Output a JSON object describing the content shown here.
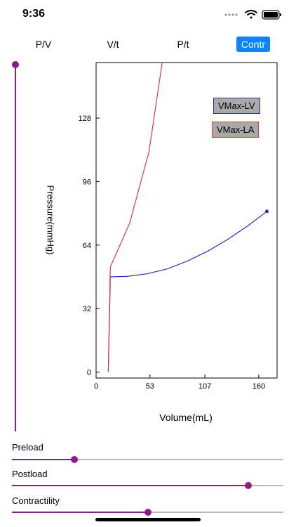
{
  "status_bar": {
    "time": "9:36"
  },
  "tabs": [
    {
      "label": "P/V",
      "active": false
    },
    {
      "label": "V/t",
      "active": false
    },
    {
      "label": "P/t",
      "active": false
    },
    {
      "label": "Contr",
      "active": true
    }
  ],
  "colors": {
    "accent": "#0a84ff",
    "slider": "#8b1a8b",
    "lv_line": "#2e2eb8",
    "la_line": "#d63b3b"
  },
  "legend": [
    {
      "label": "VMax-LV"
    },
    {
      "label": "VMax-LA"
    }
  ],
  "chart_data": {
    "type": "line",
    "xlabel": "Volume(mL)",
    "ylabel": "Pressure(mmHg)",
    "xlim": [
      0,
      178
    ],
    "ylim": [
      -3,
      156
    ],
    "x_ticks": [
      0,
      53,
      107,
      160
    ],
    "y_ticks": [
      0,
      32,
      64,
      96,
      128
    ],
    "series": [
      {
        "name": "VMax-LV",
        "points": [
          [
            12,
            0
          ],
          [
            14,
            48
          ],
          [
            30,
            48.2
          ],
          [
            50,
            49.5
          ],
          [
            70,
            52
          ],
          [
            90,
            56
          ],
          [
            110,
            61
          ],
          [
            130,
            67
          ],
          [
            150,
            74
          ],
          [
            168,
            81
          ]
        ],
        "end_marker": true
      },
      {
        "name": "VMax-LA",
        "points": [
          [
            12,
            0
          ],
          [
            14,
            53
          ],
          [
            33,
            75
          ],
          [
            52,
            111
          ],
          [
            65,
            156
          ]
        ],
        "end_marker": false
      }
    ]
  },
  "sliders": [
    {
      "label": "Preload",
      "value": 0.23
    },
    {
      "label": "Postload",
      "value": 0.87
    },
    {
      "label": "Contractility",
      "value": 0.5
    }
  ]
}
